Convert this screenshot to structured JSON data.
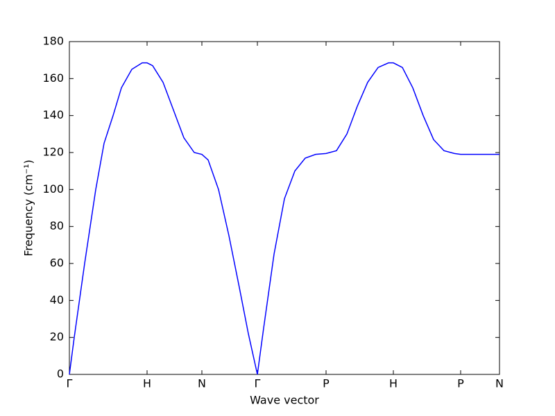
{
  "chart_data": {
    "type": "line",
    "x_label": "Wave vector",
    "y_label": "Frequency (cm⁻¹)",
    "xlim": [
      0,
      620
    ],
    "ylim": [
      0,
      180
    ],
    "xticks": [
      {
        "value": 0,
        "label": "Γ"
      },
      {
        "value": 112,
        "label": "H"
      },
      {
        "value": 191,
        "label": "N"
      },
      {
        "value": 271,
        "label": "Γ"
      },
      {
        "value": 370,
        "label": "P"
      },
      {
        "value": 467,
        "label": "H"
      },
      {
        "value": 564,
        "label": "P"
      },
      {
        "value": 620,
        "label": "N"
      }
    ],
    "yticks": [
      0,
      20,
      40,
      60,
      80,
      100,
      120,
      140,
      160,
      180
    ],
    "x": [
      0,
      7,
      22,
      38,
      50,
      63,
      75,
      90,
      105,
      112,
      120,
      135,
      150,
      165,
      180,
      191,
      200,
      215,
      230,
      245,
      258,
      271,
      280,
      295,
      310,
      325,
      340,
      355,
      370,
      385,
      400,
      415,
      430,
      445,
      460,
      467,
      480,
      495,
      510,
      525,
      540,
      555,
      564,
      590,
      620
    ],
    "series": [
      {
        "color": "#0000ff",
        "values": [
          0,
          20,
          60,
          100,
          125,
          140,
          155,
          165,
          168.5,
          168.5,
          167,
          158,
          143,
          128,
          120,
          119,
          116,
          100,
          75,
          47,
          22,
          0,
          25,
          65,
          95,
          110,
          117,
          119,
          119.5,
          121,
          130,
          145,
          158,
          166,
          168.5,
          168.5,
          166,
          155,
          140,
          127,
          121,
          119.5,
          119,
          119,
          119
        ]
      }
    ]
  }
}
